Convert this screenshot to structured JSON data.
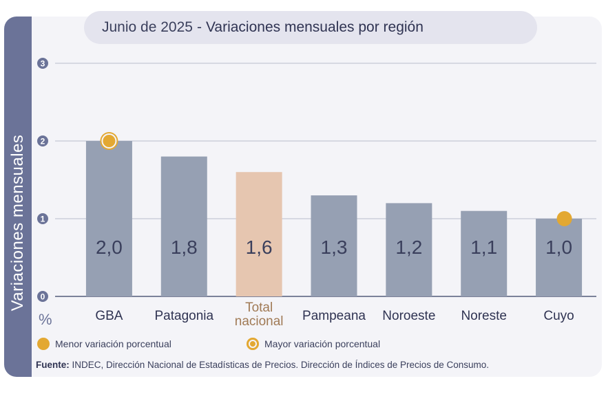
{
  "header": {
    "date": "Junio de 2025",
    "separator": "-",
    "title": "Variaciones mensuales por región"
  },
  "side_label": "Variaciones  mensuales",
  "unit": "%",
  "legend": {
    "min_label": "Menor variación porcentual",
    "max_label": "Mayor variación porcentual"
  },
  "source": {
    "prefix": "Fuente:",
    "text": "INDEC, Dirección Nacional de Estadísticas de Precios. Dirección de Índices de Precios de Consumo."
  },
  "colors": {
    "bar": "#96a0b3",
    "highlight_bar": "#e6c6b0",
    "marker": "#e3a832",
    "grid": "#b8bccb",
    "axis_badge": "#6b7398"
  },
  "chart_data": {
    "type": "bar",
    "categories": [
      "GBA",
      "Patagonia",
      "Total nacional",
      "Pampeana",
      "Noroeste",
      "Noreste",
      "Cuyo"
    ],
    "category_lines": [
      [
        "GBA"
      ],
      [
        "Patagonia"
      ],
      [
        "Total",
        "nacional"
      ],
      [
        "Pampeana"
      ],
      [
        "Noroeste"
      ],
      [
        "Noreste"
      ],
      [
        "Cuyo"
      ]
    ],
    "values": [
      2.0,
      1.8,
      1.6,
      1.3,
      1.2,
      1.1,
      1.0
    ],
    "value_labels": [
      "2,0",
      "1,8",
      "1,6",
      "1,3",
      "1,2",
      "1,1",
      "1,0"
    ],
    "highlight_category": "Total nacional",
    "max_category": "GBA",
    "min_category": "Cuyo",
    "y_ticks": [
      0,
      1,
      2,
      3
    ],
    "ylim": [
      0,
      3
    ],
    "grid": true,
    "legend_position": "bottom-left"
  }
}
